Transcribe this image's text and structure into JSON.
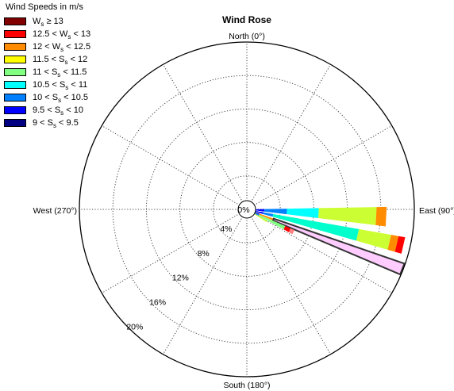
{
  "chart_data": {
    "type": "windrose",
    "title": "Wind Rose",
    "direction_labels": {
      "north": "North (0°)",
      "east": "East (90°)",
      "south": "South (180°)",
      "west": "West (270°)"
    },
    "radial_ticks": [
      {
        "value": 0,
        "label": "0%"
      },
      {
        "value": 4,
        "label": "4%"
      },
      {
        "value": 8,
        "label": "8%"
      },
      {
        "value": 12,
        "label": "12%"
      },
      {
        "value": 16,
        "label": "16%"
      },
      {
        "value": 20,
        "label": "20%"
      }
    ],
    "rmax": 20,
    "legend_title": "Wind Speeds in m/s",
    "bins": [
      {
        "label": "Ws ≥ 13",
        "sym": "W",
        "left": "",
        "right": "≥ 13",
        "color": "#800000"
      },
      {
        "label": "12.5 < Ws < 13",
        "sym": "W",
        "left": "12.5 <",
        "right": "< 13",
        "color": "#ff0000"
      },
      {
        "label": "12 < Ws < 12.5",
        "sym": "W",
        "left": "12 <",
        "right": "< 12.5",
        "color": "#ff8c00"
      },
      {
        "label": "11.5 < Ss < 12",
        "sym": "S",
        "left": "11.5 <",
        "right": "< 12",
        "color": "#ffff00"
      },
      {
        "label": "11 < Ss < 11.5",
        "sym": "S",
        "left": "11 <",
        "right": "< 11.5",
        "color": "#80ff80"
      },
      {
        "label": "10.5 < Ss < 11",
        "sym": "S",
        "left": "10.5 <",
        "right": "< 11",
        "color": "#00ffff"
      },
      {
        "label": "10 < Ss < 10.5",
        "sym": "S",
        "left": "10 <",
        "right": "< 10.5",
        "color": "#0080ff"
      },
      {
        "label": "9.5 < Ss < 10",
        "sym": "S",
        "left": "9.5 <",
        "right": "< 10",
        "color": "#0000ff"
      },
      {
        "label": "9 < Ss < 9.5",
        "sym": "S",
        "left": "9 <",
        "right": "< 9.5",
        "color": "#000080"
      }
    ],
    "sectors": [
      {
        "direction_deg": 93,
        "width_deg": 8,
        "segments": [
          {
            "color": "#0000ff",
            "r0": 1,
            "r1": 2.1
          },
          {
            "color": "#0080ff",
            "r0": 2.1,
            "r1": 4.8
          },
          {
            "color": "#00ffff",
            "r0": 4.8,
            "r1": 8.6
          },
          {
            "color": "#ccff33",
            "r0": 8.6,
            "r1": 15.5
          },
          {
            "color": "#ff8c00",
            "r0": 15.5,
            "r1": 16.7
          }
        ]
      },
      {
        "direction_deg": 103,
        "width_deg": 6,
        "segments": [
          {
            "color": "#0000ff",
            "r0": 1,
            "r1": 2
          },
          {
            "color": "#0080ff",
            "r0": 2,
            "r1": 3.2
          },
          {
            "color": "#00ffcc",
            "r0": 3.2,
            "r1": 13.6
          },
          {
            "color": "#ccff33",
            "r0": 13.6,
            "r1": 17.5
          },
          {
            "color": "#ff8c00",
            "r0": 17.5,
            "r1": 18.4
          },
          {
            "color": "#ff0000",
            "r0": 18.4,
            "r1": 19.2
          }
        ]
      },
      {
        "direction_deg": 111,
        "width_deg": 4,
        "segments": [
          {
            "color": "#000080",
            "r0": 1,
            "r1": 1.6
          },
          {
            "color": "#ff8c00",
            "r0": 1.6,
            "r1": 3.4
          },
          {
            "color": "#ffccff",
            "r0": 3.4,
            "r1": 19.9,
            "outline": true
          }
        ]
      },
      {
        "direction_deg": 116,
        "width_deg": 5,
        "segments": [
          {
            "color": "#0080ff",
            "r0": 1,
            "r1": 1.6
          },
          {
            "color": "#80ff80",
            "r0": 1.6,
            "r1": 5
          },
          {
            "color": "#ff0000",
            "r0": 5,
            "r1": 5.7
          },
          {
            "color": "#ff8080",
            "r0": 5.7,
            "r1": 6.2
          }
        ]
      },
      {
        "direction_deg": 121,
        "width_deg": 4,
        "segments": [
          {
            "color": "#ccff33",
            "r0": 1,
            "r1": 2.8
          }
        ]
      }
    ]
  }
}
